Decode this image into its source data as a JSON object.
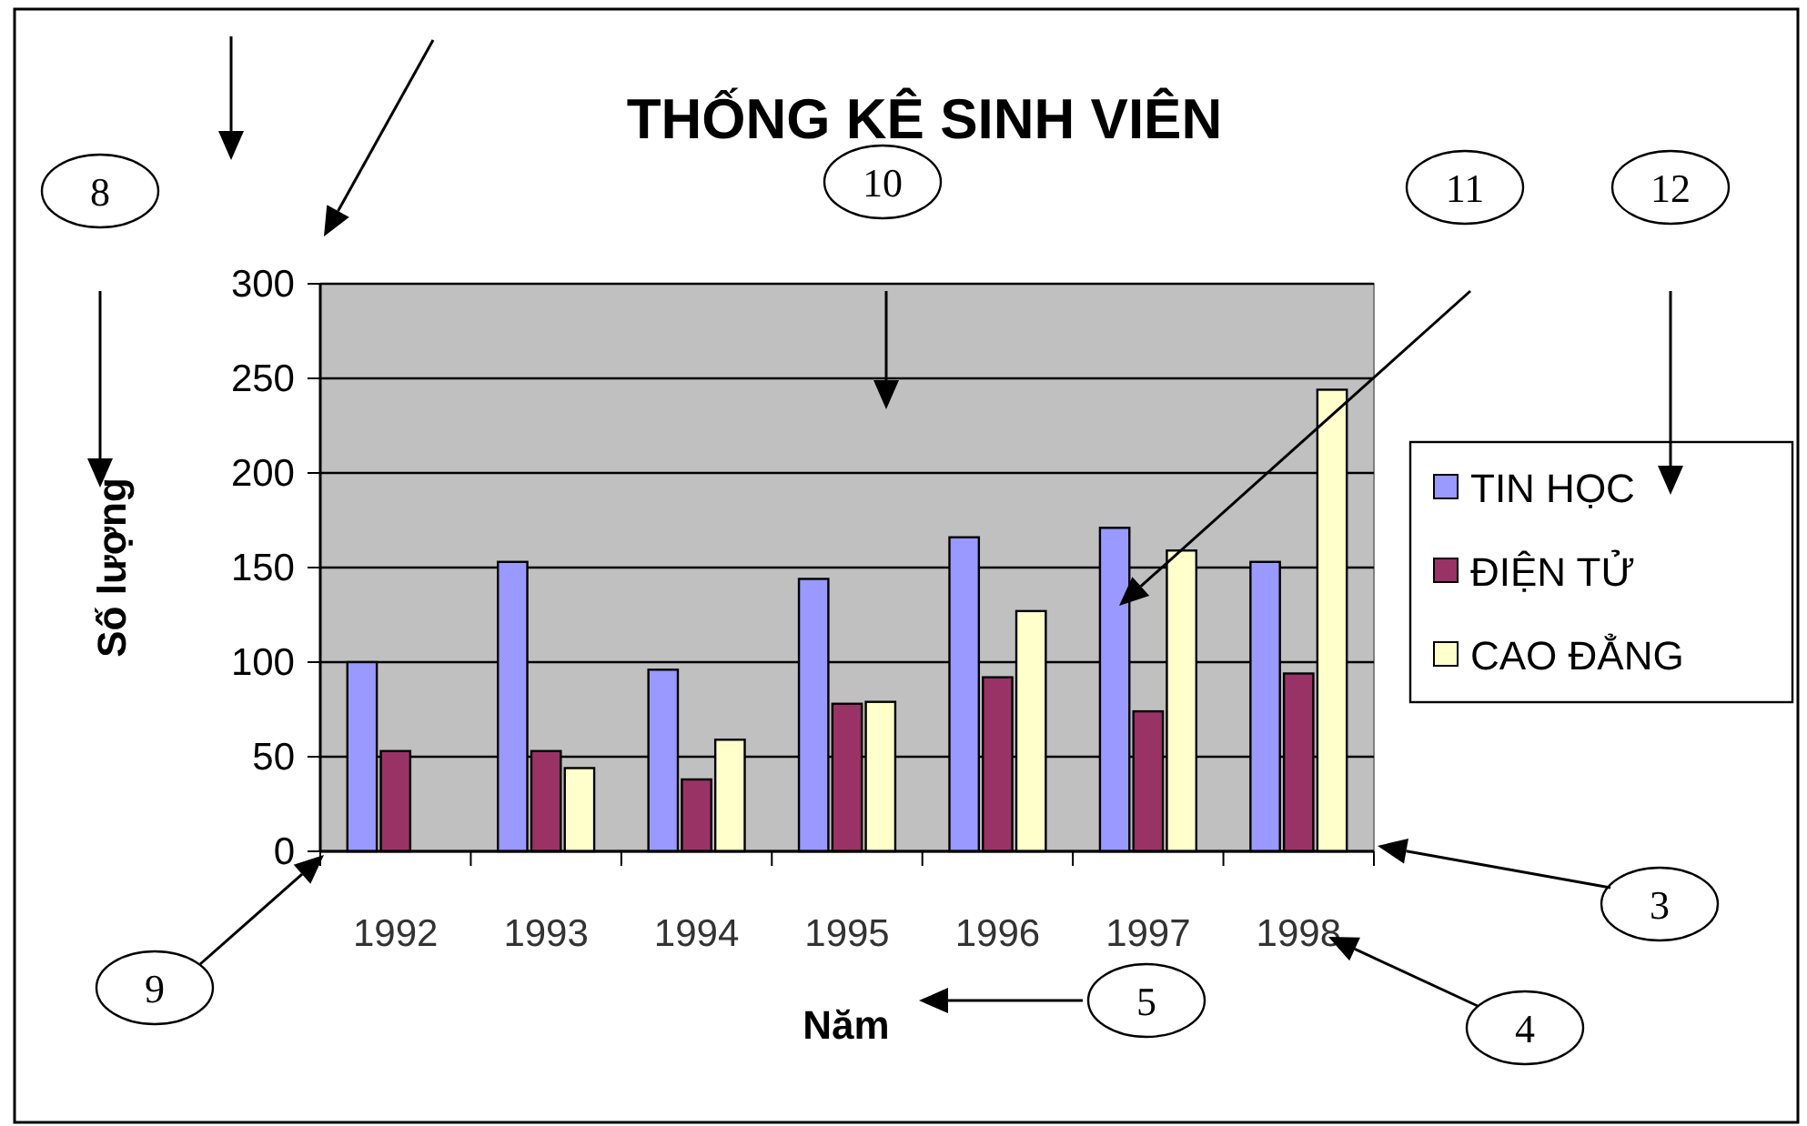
{
  "chart_data": {
    "type": "bar",
    "title": "THỐNG KÊ SINH VIÊN",
    "xlabel": "Năm",
    "ylabel": "Số lượng",
    "categories": [
      "1992",
      "1993",
      "1994",
      "1995",
      "1996",
      "1997",
      "1998"
    ],
    "series": [
      {
        "name": "TIN HỌC",
        "color": "#9999ff",
        "values": [
          100,
          153,
          96,
          144,
          166,
          171,
          153
        ]
      },
      {
        "name": "ĐIỆN TỬ",
        "color": "#993366",
        "values": [
          53,
          53,
          38,
          78,
          92,
          74,
          94
        ]
      },
      {
        "name": "CAO ĐẲNG",
        "color": "#ffffcc",
        "values": [
          null,
          44,
          59,
          79,
          127,
          159,
          244
        ]
      }
    ],
    "ylim": [
      0,
      300
    ],
    "yticks": [
      0,
      50,
      100,
      150,
      200,
      250,
      300
    ],
    "grid": "y",
    "legend": "right",
    "annotations": [
      "8",
      "10",
      "11",
      "12",
      "9",
      "3",
      "4",
      "5"
    ]
  }
}
